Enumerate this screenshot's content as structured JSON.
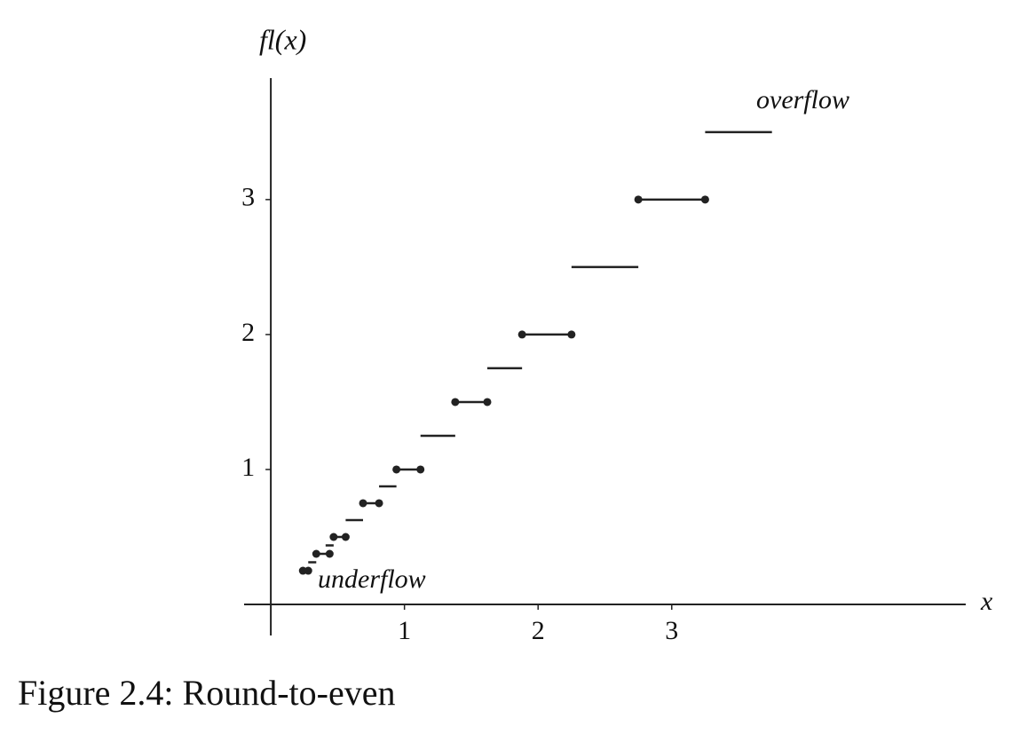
{
  "chart_data": {
    "type": "step",
    "caption": "Figure 2.4: Round-to-even",
    "y_label": "fl(x)",
    "x_label": "x",
    "annotations": {
      "overflow": "overflow",
      "underflow": "underflow"
    },
    "xlim": [
      -0.2,
      5.2
    ],
    "ylim": [
      -0.23,
      3.9
    ],
    "xticks": [
      1,
      2,
      3
    ],
    "yticks": [
      1,
      2,
      3
    ],
    "color": "#222222",
    "steps": [
      {
        "y": 0.25,
        "x": [
          0.24,
          0.28
        ],
        "closed": true
      },
      {
        "y": 0.3125,
        "x": [
          0.28,
          0.34
        ],
        "closed": false
      },
      {
        "y": 0.375,
        "x": [
          0.34,
          0.44
        ],
        "closed": true
      },
      {
        "y": 0.4375,
        "x": [
          0.41,
          0.47
        ],
        "closed": false
      },
      {
        "y": 0.5,
        "x": [
          0.47,
          0.56
        ],
        "closed": true
      },
      {
        "y": 0.625,
        "x": [
          0.56,
          0.69
        ],
        "closed": false
      },
      {
        "y": 0.75,
        "x": [
          0.69,
          0.81
        ],
        "closed": true
      },
      {
        "y": 0.875,
        "x": [
          0.81,
          0.94
        ],
        "closed": false
      },
      {
        "y": 1,
        "x": [
          0.94,
          1.12
        ],
        "closed": true
      },
      {
        "y": 1.25,
        "x": [
          1.12,
          1.38
        ],
        "closed": false
      },
      {
        "y": 1.5,
        "x": [
          1.38,
          1.62
        ],
        "closed": true
      },
      {
        "y": 1.75,
        "x": [
          1.62,
          1.88
        ],
        "closed": false
      },
      {
        "y": 2,
        "x": [
          1.88,
          2.25
        ],
        "closed": true
      },
      {
        "y": 2.5,
        "x": [
          2.25,
          2.75
        ],
        "closed": false
      },
      {
        "y": 3,
        "x": [
          2.75,
          3.25
        ],
        "closed": true
      },
      {
        "y": 3.5,
        "x": [
          3.25,
          3.75
        ],
        "closed": false
      }
    ]
  }
}
